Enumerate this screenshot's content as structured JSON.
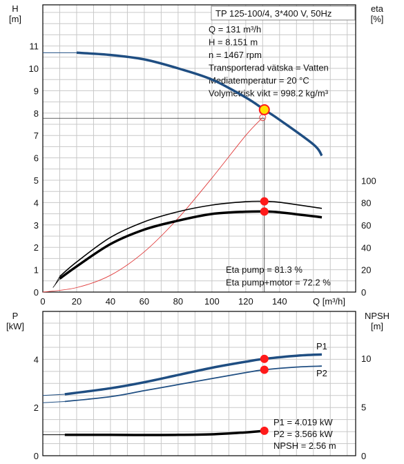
{
  "title": "TP 125-100/4, 3*400 V, 50Hz",
  "colors": {
    "head_curve": "#1f4e82",
    "p1_curve": "#1f4e82",
    "p2_curve": "#1f4e82",
    "system_curve": "#e03a3a",
    "marker": "#ff1a1a",
    "duty_marker": "#ffe100"
  },
  "top": {
    "y_label": "H",
    "y_unit": "[m]",
    "y2_label": "eta",
    "y2_unit": "[%]",
    "x_label": "Q [m³/h]",
    "x_ticks": [
      "0",
      "20",
      "40",
      "60",
      "80",
      "100",
      "120",
      "140"
    ],
    "y_ticks": [
      "0",
      "1",
      "2",
      "3",
      "4",
      "5",
      "6",
      "7",
      "8",
      "9",
      "10",
      "11"
    ],
    "y2_ticks": [
      "0",
      "20",
      "40",
      "60",
      "80",
      "100"
    ],
    "info": [
      "Q = 131 m³/h",
      "H = 8.151 m",
      "n = 1467 rpm",
      "Transporterad vätska = Vatten",
      "Mediatemperatur = 20 °C",
      "Volymetrisk vikt = 998.2 kg/m³"
    ],
    "eta_info": [
      "Eta pump = 81.3 %",
      "Eta pump+motor = 72.2 %"
    ]
  },
  "bottom": {
    "y_label": "P",
    "y_unit": "[kW]",
    "y2_label": "NPSH",
    "y2_unit": "[m]",
    "y_ticks": [
      "0",
      "2",
      "4"
    ],
    "y2_ticks": [
      "0",
      "5",
      "10"
    ],
    "curve_labels": [
      "P1",
      "P2"
    ],
    "info": [
      "P1 = 4.019 kW",
      "P2 = 3.566 kW",
      "NPSH = 2.56 m"
    ]
  },
  "chart_data": [
    {
      "type": "line",
      "title": "TP 125-100/4, 3*400 V, 50Hz",
      "xlabel": "Q [m³/h]",
      "ylabel": "H [m]",
      "y2label": "eta [%]",
      "xlim": [
        0,
        185
      ],
      "ylim": [
        0,
        12
      ],
      "y2lim": [
        0,
        150
      ],
      "grid": true,
      "duty_point": {
        "Q": 131,
        "H": 8.151
      },
      "series": [
        {
          "name": "H",
          "axis": "left",
          "x": [
            0,
            20,
            40,
            60,
            80,
            100,
            120,
            131,
            140,
            160,
            165
          ],
          "values": [
            10.7,
            10.7,
            10.6,
            10.4,
            10.0,
            9.5,
            8.7,
            8.151,
            7.7,
            6.6,
            6.1
          ]
        },
        {
          "name": "system",
          "axis": "left",
          "x": [
            0,
            20,
            40,
            60,
            80,
            100,
            120,
            130
          ],
          "values": [
            0,
            0.2,
            0.75,
            1.8,
            3.3,
            5.1,
            7.0,
            7.8
          ]
        },
        {
          "name": "Eta pump",
          "axis": "right",
          "x": [
            10,
            20,
            40,
            60,
            80,
            100,
            120,
            131,
            140,
            165
          ],
          "values": [
            14,
            27,
            49,
            63,
            72,
            78,
            81,
            81.3,
            80.5,
            75
          ]
        },
        {
          "name": "Eta pump+motor",
          "axis": "right",
          "x": [
            10,
            20,
            40,
            60,
            80,
            100,
            120,
            131,
            140,
            165
          ],
          "values": [
            12,
            23,
            43,
            56,
            64,
            70,
            72,
            72.2,
            71.5,
            67
          ]
        }
      ]
    },
    {
      "type": "line",
      "ylabel": "P [kW]",
      "y2label": "NPSH [m]",
      "xlim": [
        0,
        185
      ],
      "ylim": [
        0,
        5.2
      ],
      "y2lim": [
        0,
        13
      ],
      "grid": true,
      "series": [
        {
          "name": "P1",
          "axis": "left",
          "x": [
            0,
            13,
            40,
            60,
            80,
            100,
            120,
            131,
            150,
            165
          ],
          "values": [
            2.5,
            2.55,
            2.8,
            3.05,
            3.35,
            3.65,
            3.9,
            4.019,
            4.15,
            4.2
          ]
        },
        {
          "name": "P2",
          "axis": "left",
          "x": [
            0,
            13,
            40,
            60,
            80,
            100,
            120,
            131,
            150,
            165
          ],
          "values": [
            2.2,
            2.25,
            2.45,
            2.7,
            2.95,
            3.2,
            3.45,
            3.566,
            3.68,
            3.72
          ]
        },
        {
          "name": "NPSH",
          "axis": "right",
          "x": [
            0,
            13,
            40,
            60,
            80,
            100,
            120,
            131
          ],
          "values": [
            2.15,
            2.15,
            2.14,
            2.13,
            2.14,
            2.2,
            2.4,
            2.56
          ]
        }
      ]
    }
  ]
}
